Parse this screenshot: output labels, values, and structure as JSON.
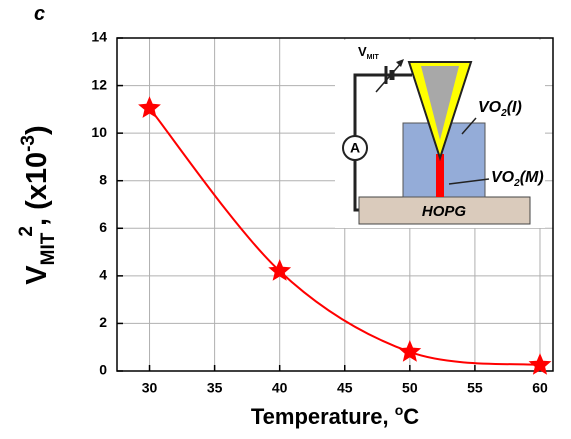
{
  "chart_data": {
    "type": "line",
    "panel": "c",
    "x": [
      30,
      40,
      50,
      60
    ],
    "series": [
      {
        "color": "#ff0000",
        "values": [
          11.05,
          4.2,
          0.8,
          0.25
        ]
      }
    ],
    "xlim": [
      27.5,
      61
    ],
    "xticks": [
      30,
      35,
      40,
      45,
      50,
      55,
      60
    ],
    "ylim": [
      0,
      14
    ],
    "yticks": [
      0,
      2,
      4,
      6,
      8,
      10,
      12,
      14
    ],
    "grid": true,
    "xlabel": {
      "text": "Temperature, ",
      "sup": "o",
      "unit": "C"
    },
    "ylabel": {
      "base": "V",
      "sub": "MIT",
      "sup": "2",
      "text": ", (x10",
      "exp": "-3",
      "close": ")"
    },
    "inset": {
      "voltage": "V",
      "voltage_sub": "MIT",
      "meter": "A",
      "insulator": {
        "base": "VO",
        "sub": "2",
        "phase": "(I)"
      },
      "metal": {
        "base": "VO",
        "sub": "2",
        "phase": "(M)"
      },
      "substrate": "HOPG"
    }
  }
}
